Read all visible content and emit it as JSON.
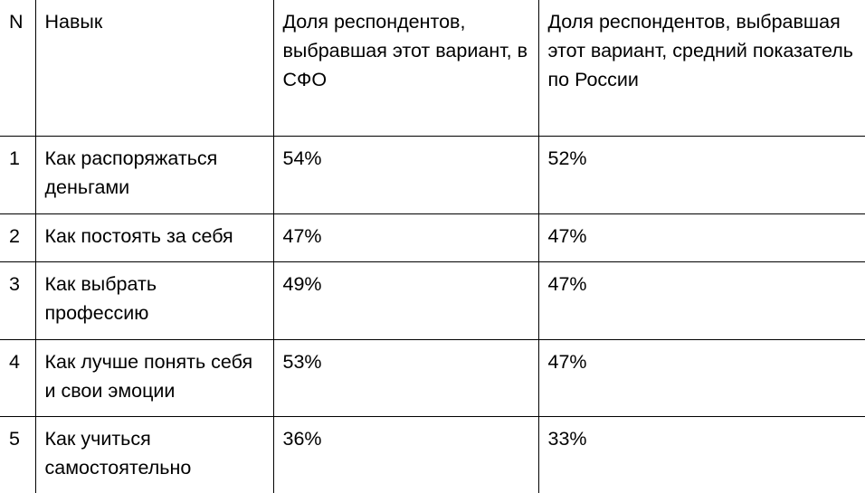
{
  "table": {
    "headers": {
      "n": "N",
      "skill": "Навык",
      "sfo": "Доля респондентов, выбравшая этот вариант, в СФО",
      "russia": "Доля респондентов, выбравшая этот вариант, средний показатель по России"
    },
    "rows": [
      {
        "n": "1",
        "skill": "Как распоряжаться деньгами",
        "sfo": "54%",
        "russia": "52%"
      },
      {
        "n": "2",
        "skill": "Как постоять за себя",
        "sfo": "47%",
        "russia": "47%"
      },
      {
        "n": "3",
        "skill": "Как выбрать профессию",
        "sfo": "49%",
        "russia": "47%"
      },
      {
        "n": "4",
        "skill": "Как лучше понять себя и свои эмоции",
        "sfo": "53%",
        "russia": "47%"
      },
      {
        "n": "5",
        "skill": "Как учиться самостоятельно",
        "sfo": "36%",
        "russia": "33%"
      }
    ]
  }
}
